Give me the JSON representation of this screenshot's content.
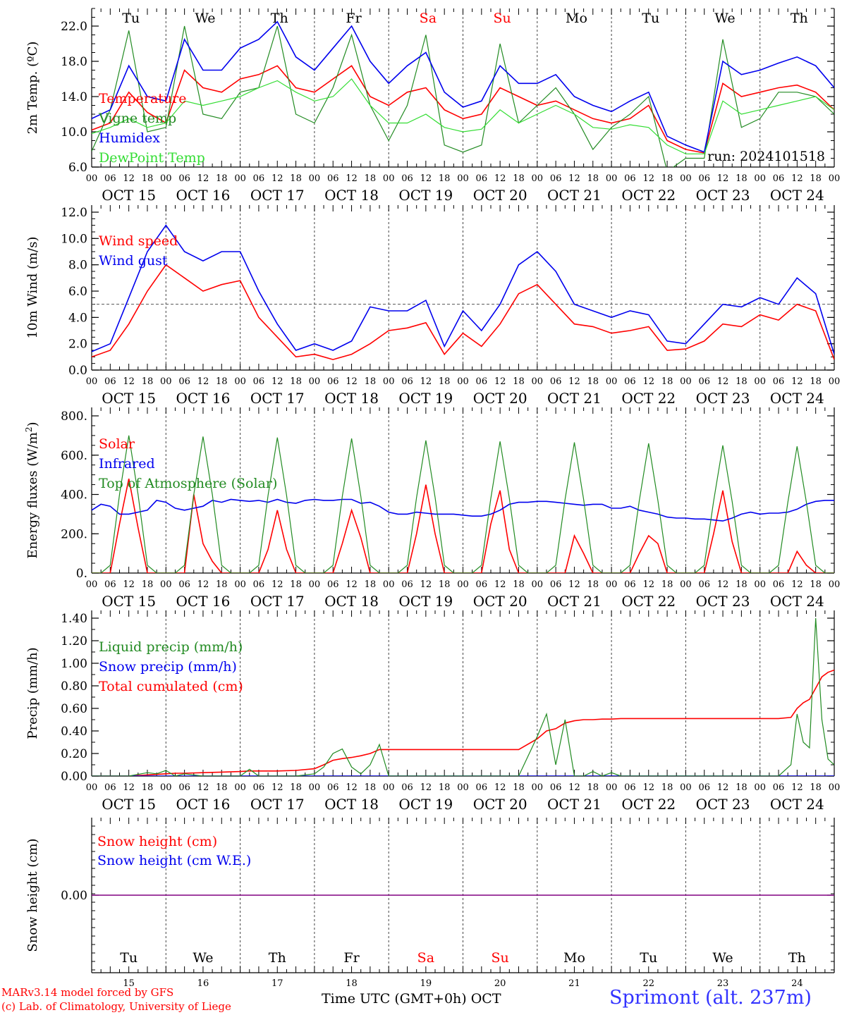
{
  "colors": {
    "red": "#ff0000",
    "dark_green": "#228b22",
    "blue": "#0000ee",
    "light_green": "#33dd33",
    "day_red": "#ff0000",
    "snow_line": "#800080"
  },
  "day_labels": [
    {
      "label": "Tu",
      "weekend": false
    },
    {
      "label": "We",
      "weekend": false
    },
    {
      "label": "Th",
      "weekend": false
    },
    {
      "label": "Fr",
      "weekend": false
    },
    {
      "label": "Sa",
      "weekend": true
    },
    {
      "label": "Su",
      "weekend": true
    },
    {
      "label": "Mo",
      "weekend": false
    },
    {
      "label": "Tu",
      "weekend": false
    },
    {
      "label": "We",
      "weekend": false
    },
    {
      "label": "Th",
      "weekend": false
    }
  ],
  "date_labels": [
    "OCT 15",
    "OCT 16",
    "OCT 17",
    "OCT 18",
    "OCT 19",
    "OCT 20",
    "OCT 21",
    "OCT 22",
    "OCT 23",
    "OCT 24"
  ],
  "hour_labels": [
    "00",
    "06",
    "12",
    "18"
  ],
  "bottom_day_numbers": [
    "15",
    "16",
    "17",
    "18",
    "19",
    "20",
    "21",
    "22",
    "23",
    "24"
  ],
  "footer": {
    "credit_line1": "MARv3.14 model forced by GFS",
    "credit_line2": "(c) Lab. of Climatology, University of Liege",
    "x_axis_title": "Time UTC (GMT+0h) OCT",
    "station": "Sprimont (alt. 237m)"
  },
  "chart_data": [
    {
      "id": "temperature",
      "type": "line",
      "ylabel": "2m Temp. (ºC)",
      "ylim": [
        6,
        24
      ],
      "yticks": [
        6.0,
        10.0,
        14.0,
        18.0,
        22.0
      ],
      "ytick_labels": [
        "6.0",
        "10.0",
        "14.0",
        "18.0",
        "22.0"
      ],
      "minor_step": 1,
      "run_label": "run: 2024101518",
      "x_hours": [
        0,
        6,
        12,
        18,
        24,
        30,
        36,
        42,
        48,
        54,
        60,
        66,
        72,
        78,
        84,
        90,
        96,
        102,
        108,
        114,
        120,
        126,
        132,
        138,
        144,
        150,
        156,
        162,
        168,
        174,
        180,
        186,
        192,
        198,
        204,
        210,
        216,
        222,
        228,
        234,
        240
      ],
      "series": [
        {
          "name": "Temperature",
          "color_key": "red",
          "values": [
            10.2,
            11.0,
            14.5,
            12.2,
            11.0,
            17.0,
            15.0,
            14.5,
            16.0,
            16.5,
            17.5,
            15.0,
            14.5,
            16.0,
            17.5,
            14.0,
            13.0,
            14.5,
            15.0,
            12.5,
            11.5,
            12.0,
            15.0,
            14.0,
            13.0,
            13.5,
            12.5,
            11.5,
            11.0,
            11.5,
            13.0,
            9.0,
            8.0,
            7.6,
            15.5,
            14.0,
            14.5,
            15.0,
            15.3,
            14.5,
            12.5
          ]
        },
        {
          "name": "Vigne temp",
          "color_key": "dark_green",
          "values": [
            7.8,
            12.5,
            21.5,
            10.0,
            10.5,
            22.0,
            12.0,
            11.5,
            14.5,
            15.0,
            22.0,
            12.0,
            11.0,
            15.0,
            21.0,
            13.0,
            9.0,
            13.0,
            21.0,
            8.5,
            7.7,
            8.5,
            20.0,
            11.0,
            13.0,
            15.0,
            12.0,
            8.0,
            10.5,
            12.0,
            14.0,
            5.5,
            7.0,
            7.0,
            20.5,
            10.5,
            11.5,
            14.5,
            14.5,
            14.0,
            12.0
          ]
        },
        {
          "name": "Humidex",
          "color_key": "blue",
          "values": [
            11.5,
            12.5,
            17.5,
            14.0,
            13.5,
            20.5,
            17.0,
            17.0,
            19.5,
            20.5,
            22.5,
            18.5,
            17.0,
            19.5,
            22.0,
            18.0,
            15.5,
            17.5,
            19.0,
            14.5,
            12.8,
            13.5,
            17.5,
            15.5,
            15.5,
            16.5,
            14.0,
            13.0,
            12.3,
            13.5,
            14.5,
            9.5,
            8.5,
            7.7,
            18.0,
            16.5,
            17.0,
            17.8,
            18.5,
            17.5,
            15.0
          ]
        },
        {
          "name": "DewPoint Temp",
          "color_key": "light_green",
          "values": [
            9.8,
            10.5,
            11.5,
            10.5,
            11.0,
            13.5,
            13.0,
            13.5,
            14.0,
            15.0,
            15.8,
            14.5,
            13.5,
            14.0,
            16.0,
            13.0,
            11.0,
            11.0,
            12.0,
            10.5,
            10.0,
            10.3,
            12.5,
            11.0,
            12.0,
            13.0,
            12.0,
            10.5,
            10.3,
            10.8,
            10.5,
            8.5,
            7.5,
            7.5,
            13.5,
            12.0,
            12.5,
            13.0,
            13.5,
            14.0,
            12.5
          ]
        }
      ]
    },
    {
      "id": "wind",
      "type": "line",
      "ylabel": "10m Wind (m/s)",
      "ylim": [
        0,
        12
      ],
      "yticks": [
        0.0,
        2.0,
        4.0,
        6.0,
        8.0,
        10.0,
        12.0
      ],
      "ytick_labels": [
        "0.0",
        "2.0",
        "4.0",
        "6.0",
        "8.0",
        "10.0",
        "12.0"
      ],
      "minor_step": 0.5,
      "reference_line": 5,
      "x_hours": [
        0,
        6,
        12,
        18,
        24,
        30,
        36,
        42,
        48,
        54,
        60,
        66,
        72,
        78,
        84,
        90,
        96,
        102,
        108,
        114,
        120,
        126,
        132,
        138,
        144,
        150,
        156,
        162,
        168,
        174,
        180,
        186,
        192,
        198,
        204,
        210,
        216,
        222,
        228,
        234,
        240
      ],
      "series": [
        {
          "name": "Wind speed",
          "color_key": "red",
          "values": [
            1.0,
            1.5,
            3.5,
            6.0,
            8.0,
            7.0,
            6.0,
            6.5,
            6.8,
            4.0,
            2.5,
            1.0,
            1.2,
            0.8,
            1.2,
            2.0,
            3.0,
            3.2,
            3.6,
            1.2,
            2.8,
            1.8,
            3.5,
            5.8,
            6.5,
            5.0,
            3.5,
            3.3,
            2.8,
            3.0,
            3.3,
            1.5,
            1.6,
            2.2,
            3.5,
            3.3,
            4.2,
            3.8,
            5.0,
            4.5,
            0.8
          ]
        },
        {
          "name": "Wind gust",
          "color_key": "blue",
          "values": [
            1.4,
            2.0,
            5.5,
            9.0,
            11.0,
            9.0,
            8.3,
            9.0,
            9.0,
            6.0,
            3.5,
            1.5,
            2.0,
            1.5,
            2.2,
            4.8,
            4.5,
            4.5,
            5.3,
            1.8,
            4.5,
            3.0,
            5.0,
            8.0,
            9.0,
            7.5,
            5.0,
            4.5,
            4.0,
            4.5,
            4.2,
            2.2,
            2.0,
            3.5,
            5.0,
            4.8,
            5.5,
            5.0,
            7.0,
            5.8,
            1.2
          ]
        }
      ]
    },
    {
      "id": "energy",
      "type": "line",
      "ylabel": "Energy fluxes (W/m²)",
      "ylim": [
        0,
        800
      ],
      "yticks": [
        0,
        200,
        400,
        600,
        800
      ],
      "ytick_labels": [
        "0.",
        "200.",
        "400.",
        "600.",
        "800."
      ],
      "minor_step": 50,
      "x_hours": [
        0,
        3,
        6,
        9,
        12,
        15,
        18,
        21,
        24,
        27,
        30,
        33,
        36,
        39,
        42,
        45,
        48,
        51,
        54,
        57,
        60,
        63,
        66,
        69,
        72,
        75,
        78,
        81,
        84,
        87,
        90,
        93,
        96,
        99,
        102,
        105,
        108,
        111,
        114,
        117,
        120,
        123,
        126,
        129,
        132,
        135,
        138,
        141,
        144,
        147,
        150,
        153,
        156,
        159,
        162,
        165,
        168,
        171,
        174,
        177,
        180,
        183,
        186,
        189,
        192,
        195,
        198,
        201,
        204,
        207,
        210,
        213,
        216,
        219,
        222,
        225,
        228,
        231,
        234,
        237,
        240
      ],
      "series": [
        {
          "name": "Solar",
          "color_key": "red",
          "values": [
            0,
            0,
            0,
            250,
            480,
            230,
            0,
            0,
            0,
            0,
            0,
            400,
            150,
            60,
            0,
            0,
            0,
            0,
            0,
            120,
            320,
            120,
            0,
            0,
            0,
            0,
            0,
            150,
            320,
            180,
            0,
            0,
            0,
            0,
            0,
            200,
            450,
            200,
            0,
            0,
            0,
            0,
            0,
            250,
            420,
            120,
            0,
            0,
            0,
            0,
            0,
            0,
            190,
            100,
            0,
            0,
            0,
            0,
            0,
            100,
            190,
            150,
            0,
            0,
            0,
            0,
            0,
            200,
            420,
            160,
            0,
            0,
            0,
            0,
            0,
            0,
            110,
            40,
            0,
            0,
            0
          ]
        },
        {
          "name": "Infrared",
          "color_key": "blue",
          "values": [
            320,
            350,
            340,
            300,
            300,
            310,
            320,
            370,
            360,
            330,
            320,
            330,
            340,
            370,
            360,
            375,
            370,
            365,
            370,
            360,
            375,
            360,
            355,
            370,
            375,
            370,
            370,
            375,
            375,
            355,
            360,
            340,
            310,
            300,
            300,
            310,
            305,
            300,
            300,
            300,
            295,
            290,
            290,
            300,
            320,
            350,
            360,
            360,
            365,
            365,
            360,
            355,
            350,
            345,
            350,
            350,
            330,
            330,
            340,
            320,
            310,
            300,
            285,
            280,
            280,
            275,
            275,
            270,
            265,
            280,
            300,
            310,
            300,
            305,
            305,
            310,
            325,
            350,
            365,
            370,
            370
          ]
        },
        {
          "name": "Top of Atmosphere (Solar)",
          "color_key": "dark_green",
          "values": [
            0,
            0,
            40,
            400,
            700,
            400,
            40,
            0,
            0,
            0,
            40,
            400,
            695,
            400,
            40,
            0,
            0,
            0,
            40,
            395,
            690,
            395,
            40,
            0,
            0,
            0,
            40,
            390,
            685,
            390,
            40,
            0,
            0,
            0,
            40,
            385,
            675,
            385,
            40,
            0,
            0,
            0,
            40,
            380,
            670,
            380,
            40,
            0,
            0,
            0,
            40,
            375,
            665,
            375,
            40,
            0,
            0,
            0,
            40,
            370,
            660,
            370,
            40,
            0,
            0,
            0,
            40,
            365,
            650,
            365,
            40,
            0,
            0,
            0,
            40,
            360,
            645,
            360,
            40,
            0,
            0
          ]
        }
      ]
    },
    {
      "id": "precip",
      "type": "line",
      "ylabel": "Precip (mm/h)",
      "ylim": [
        0,
        1.4
      ],
      "yticks": [
        0.0,
        0.2,
        0.4,
        0.6,
        0.8,
        1.0,
        1.2,
        1.4
      ],
      "ytick_labels": [
        "0.00",
        "0.20",
        "0.40",
        "0.60",
        "0.80",
        "1.00",
        "1.20",
        "1.40"
      ],
      "minor_step": 0.1,
      "x_hours": [
        0,
        6,
        12,
        18,
        21,
        24,
        27,
        30,
        36,
        42,
        48,
        51,
        54,
        60,
        66,
        72,
        75,
        78,
        81,
        84,
        87,
        90,
        93,
        96,
        99,
        102,
        108,
        114,
        120,
        126,
        132,
        138,
        144,
        147,
        150,
        153,
        156,
        159,
        162,
        165,
        168,
        171,
        174,
        180,
        186,
        192,
        198,
        204,
        210,
        216,
        222,
        226,
        228,
        230,
        232,
        234,
        236,
        238,
        240
      ],
      "series": [
        {
          "name": "Liquid precip (mm/h)",
          "color_key": "dark_green",
          "values": [
            0,
            0,
            0,
            0.03,
            0.02,
            0.05,
            0,
            0.02,
            0,
            0,
            0,
            0.06,
            0,
            0,
            0,
            0.02,
            0.08,
            0.2,
            0.24,
            0.08,
            0.02,
            0.1,
            0.28,
            0,
            0,
            0,
            0,
            0,
            0,
            0,
            0,
            0,
            0.35,
            0.55,
            0.1,
            0.5,
            0,
            0,
            0.04,
            0,
            0.03,
            0,
            0,
            0,
            0,
            0,
            0,
            0,
            0,
            0,
            0,
            0.1,
            0.55,
            0.3,
            0.25,
            1.4,
            0.5,
            0.15,
            0.1
          ]
        },
        {
          "name": "Snow precip (mm/h)",
          "color_key": "blue",
          "values": [
            0,
            0,
            0,
            0,
            0,
            0,
            0,
            0,
            0,
            0,
            0,
            0,
            0,
            0,
            0,
            0,
            0,
            0,
            0,
            0,
            0,
            0,
            0,
            0,
            0,
            0,
            0,
            0,
            0,
            0,
            0,
            0,
            0,
            0,
            0,
            0,
            0,
            0,
            0,
            0,
            0,
            0,
            0,
            0,
            0,
            0,
            0,
            0,
            0,
            0,
            0,
            0,
            0,
            0,
            0,
            0,
            0,
            0,
            0
          ]
        },
        {
          "name": "Total cumulated (cm)",
          "color_key": "red",
          "values": [
            0,
            0,
            0,
            0.01,
            0.015,
            0.02,
            0.025,
            0.025,
            0.03,
            0.035,
            0.04,
            0.045,
            0.045,
            0.045,
            0.05,
            0.065,
            0.1,
            0.14,
            0.155,
            0.165,
            0.18,
            0.2,
            0.235,
            0.235,
            0.235,
            0.235,
            0.235,
            0.235,
            0.235,
            0.235,
            0.235,
            0.235,
            0.33,
            0.4,
            0.42,
            0.47,
            0.49,
            0.5,
            0.5,
            0.505,
            0.505,
            0.51,
            0.51,
            0.51,
            0.51,
            0.51,
            0.51,
            0.51,
            0.51,
            0.51,
            0.51,
            0.52,
            0.6,
            0.65,
            0.68,
            0.78,
            0.88,
            0.92,
            0.94
          ]
        }
      ]
    },
    {
      "id": "snow",
      "type": "line",
      "ylabel": "Snow height (cm)",
      "ylim": [
        -1,
        1
      ],
      "yticks": [
        0.0
      ],
      "ytick_labels": [
        "0.00"
      ],
      "x_hours": [
        0,
        240
      ],
      "series": [
        {
          "name": "Snow height (cm)",
          "color_key": "red",
          "values": [
            0,
            0
          ]
        },
        {
          "name": "Snow height (cm W.E.)",
          "color_key": "blue",
          "values": [
            0,
            0
          ]
        }
      ]
    }
  ]
}
